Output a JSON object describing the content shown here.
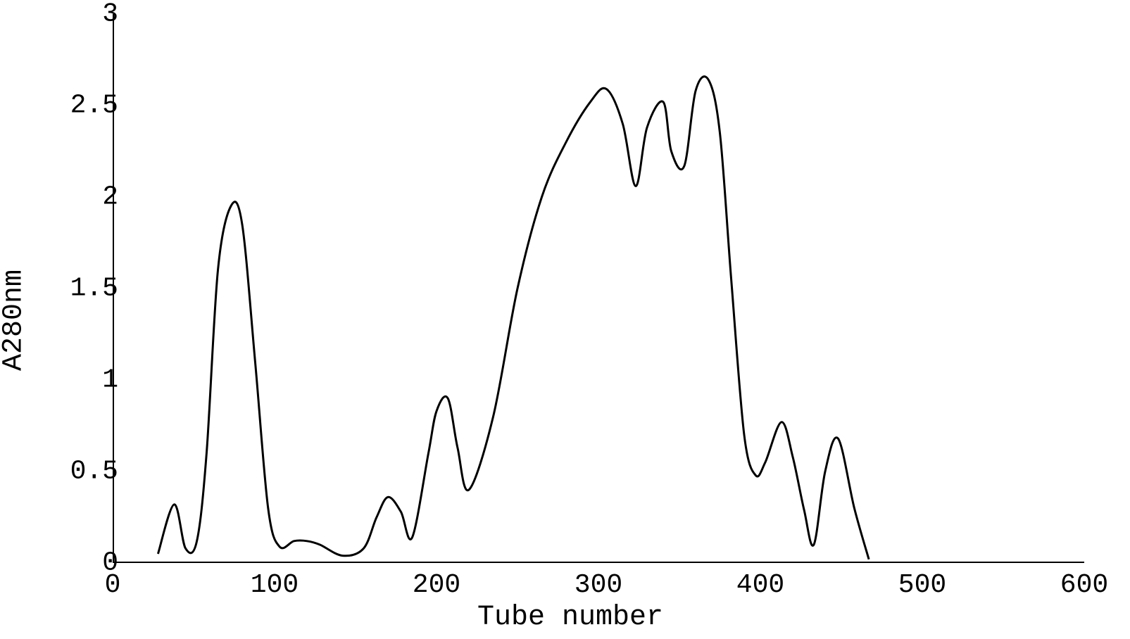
{
  "chart": {
    "type": "line",
    "xlabel": "Tube number",
    "ylabel": "A280nm",
    "label_fontsize": 40,
    "tick_fontsize": 38,
    "background_color": "#ffffff",
    "line_color": "#000000",
    "axis_color": "#000000",
    "line_width": 3,
    "axis_line_width": 4,
    "xlim": [
      0,
      600
    ],
    "ylim": [
      0,
      3
    ],
    "xtick_step": 100,
    "ytick_step": 0.5,
    "xticks": [
      0,
      100,
      200,
      300,
      400,
      500,
      600
    ],
    "yticks": [
      0,
      0.5,
      1,
      1.5,
      2,
      2.5,
      3
    ],
    "xtick_labels": [
      "0",
      "100",
      "200",
      "300",
      "400",
      "500",
      "600"
    ],
    "ytick_labels": [
      "0",
      "0.5",
      "1",
      "1.5",
      "2",
      "2.5",
      "3"
    ],
    "tick_length_major": 22,
    "tick_length_minor": 12,
    "x_minor_step": 20,
    "y_minor_step": 0.1,
    "data": {
      "x": [
        28,
        38,
        45,
        52,
        58,
        65,
        73,
        80,
        88,
        96,
        103,
        112,
        120,
        128,
        142,
        155,
        163,
        170,
        178,
        185,
        195,
        200,
        207,
        213,
        220,
        235,
        250,
        265,
        280,
        295,
        305,
        315,
        323,
        330,
        340,
        345,
        353,
        360,
        368,
        375,
        382,
        390,
        397,
        403,
        413,
        420,
        427,
        433,
        440,
        448,
        458,
        467
      ],
      "y": [
        0.05,
        0.32,
        0.08,
        0.12,
        0.6,
        1.6,
        1.95,
        1.85,
        1.1,
        0.3,
        0.09,
        0.12,
        0.12,
        0.1,
        0.04,
        0.08,
        0.25,
        0.36,
        0.28,
        0.14,
        0.6,
        0.83,
        0.9,
        0.63,
        0.4,
        0.8,
        1.5,
        2.0,
        2.3,
        2.52,
        2.59,
        2.4,
        2.06,
        2.38,
        2.52,
        2.25,
        2.17,
        2.58,
        2.64,
        2.35,
        1.55,
        0.7,
        0.48,
        0.55,
        0.77,
        0.58,
        0.29,
        0.1,
        0.5,
        0.68,
        0.3,
        0.02
      ]
    }
  }
}
